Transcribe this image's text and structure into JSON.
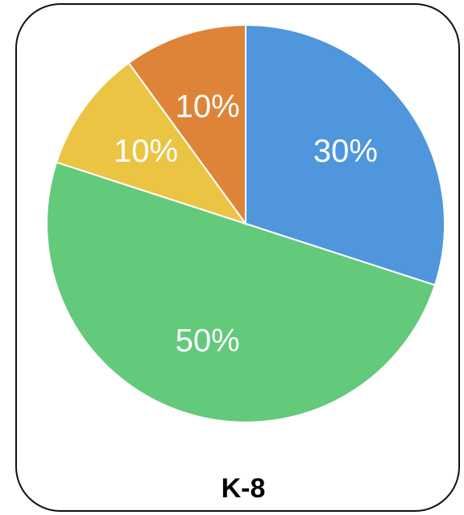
{
  "chart_data": {
    "type": "pie",
    "title": "K-8",
    "slices": [
      {
        "label": "30%",
        "value": 30,
        "color": "#4f96dc"
      },
      {
        "label": "50%",
        "value": 50,
        "color": "#63c97b"
      },
      {
        "label": "10%",
        "value": 10,
        "color": "#ecc444"
      },
      {
        "label": "10%",
        "value": 10,
        "color": "#de8439"
      }
    ]
  }
}
